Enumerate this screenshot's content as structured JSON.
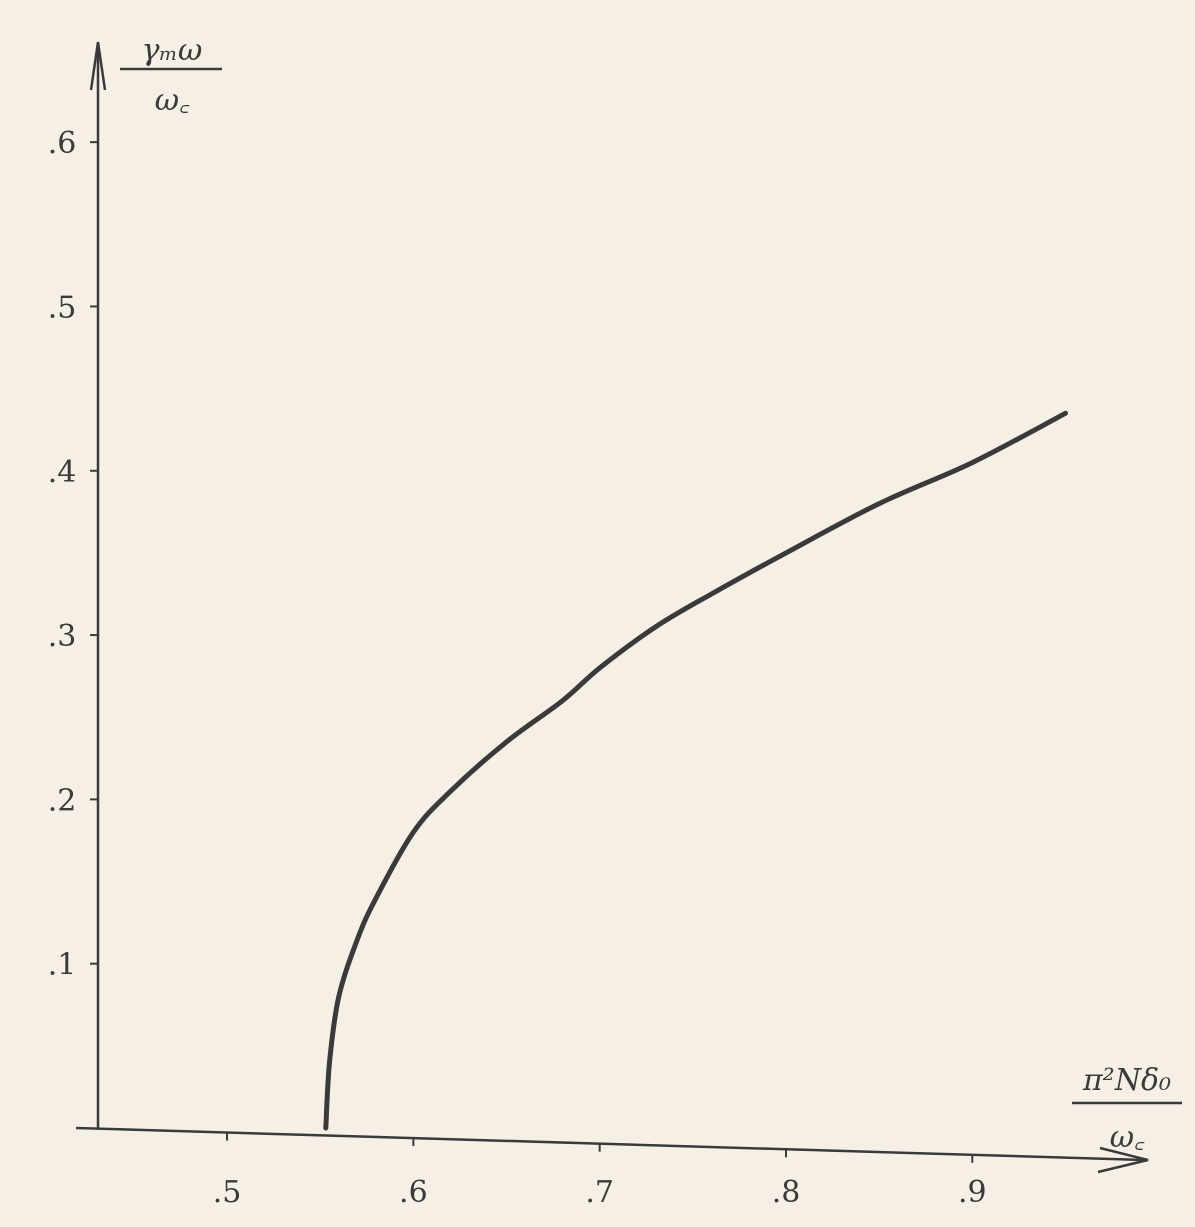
{
  "chart_data": {
    "type": "line",
    "title": "",
    "xlabel": {
      "numerator": "π²Nδ₀",
      "denominator": "ω꜀"
    },
    "ylabel": {
      "numerator": "γₘω",
      "denominator": "ω꜀"
    },
    "xlim": [
      0.42,
      0.99
    ],
    "ylim": [
      0,
      0.65
    ],
    "x_ticks": [
      0.5,
      0.6,
      0.7,
      0.8,
      0.9
    ],
    "x_tick_labels": [
      ".5",
      ".6",
      ".7",
      ".8",
      ".9"
    ],
    "y_ticks": [
      0.1,
      0.2,
      0.3,
      0.4,
      0.5,
      0.6
    ],
    "y_tick_labels": [
      ".1",
      ".2",
      ".3",
      ".4",
      ".5",
      ".6"
    ],
    "grid": false,
    "series": [
      {
        "x": [
          0.553,
          0.555,
          0.56,
          0.57,
          0.58,
          0.6,
          0.62,
          0.65,
          0.68,
          0.7,
          0.73,
          0.76,
          0.8,
          0.85,
          0.9,
          0.95
        ],
        "y": [
          0.0,
          0.04,
          0.08,
          0.115,
          0.14,
          0.18,
          0.205,
          0.235,
          0.26,
          0.28,
          0.305,
          0.325,
          0.35,
          0.38,
          0.405,
          0.435
        ]
      }
    ],
    "colors": {
      "ink": "#3a3a3a",
      "paper": "#f6efe6"
    }
  }
}
